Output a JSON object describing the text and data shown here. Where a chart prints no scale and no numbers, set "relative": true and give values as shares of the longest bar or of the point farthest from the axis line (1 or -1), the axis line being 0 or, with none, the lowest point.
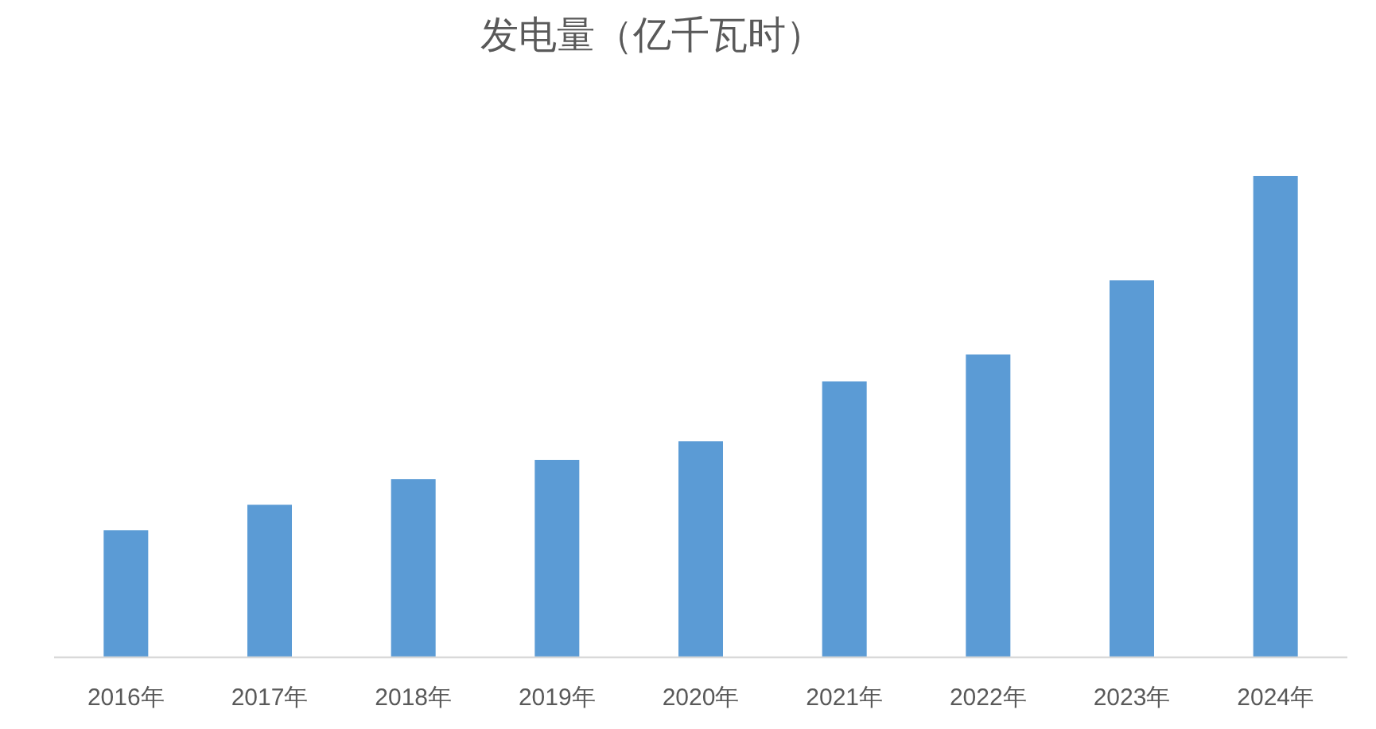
{
  "chart_data": {
    "type": "bar",
    "title": "发电量（亿千瓦时）",
    "categories": [
      "2016年",
      "2017年",
      "2018年",
      "2019年",
      "2020年",
      "2021年",
      "2022年",
      "2023年",
      "2024年"
    ],
    "values": [
      0.264,
      0.317,
      0.37,
      0.41,
      0.449,
      0.573,
      0.629,
      0.783,
      1
    ],
    "color": "#5b9bd5",
    "relative": true
  }
}
